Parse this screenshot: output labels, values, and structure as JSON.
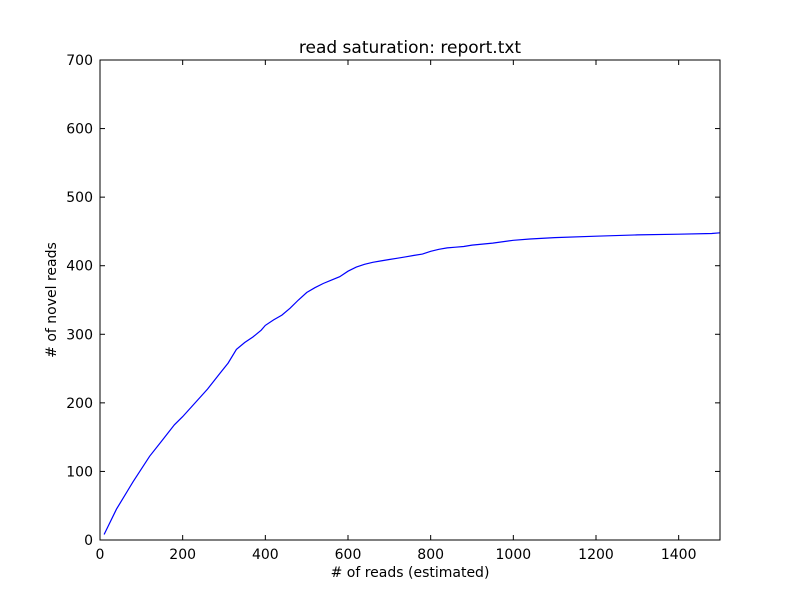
{
  "chart_data": {
    "type": "line",
    "title": "read saturation: report.txt",
    "xlabel": "# of reads (estimated)",
    "ylabel": "# of novel reads",
    "xlim": [
      0,
      1500
    ],
    "ylim": [
      0,
      700
    ],
    "xticks": [
      0,
      200,
      400,
      600,
      800,
      1000,
      1200,
      1400
    ],
    "yticks": [
      0,
      100,
      200,
      300,
      400,
      500,
      600,
      700
    ],
    "grid": false,
    "line_color": "#0000ff",
    "series": [
      {
        "x": [
          10,
          40,
          80,
          120,
          150,
          180,
          200,
          230,
          260,
          290,
          310,
          330,
          350,
          370,
          390,
          400,
          420,
          440,
          460,
          480,
          500,
          520,
          540,
          560,
          580,
          600,
          620,
          640,
          660,
          680,
          700,
          720,
          740,
          760,
          780,
          800,
          820,
          840,
          860,
          880,
          900,
          950,
          1000,
          1040,
          1100,
          1200,
          1300,
          1400,
          1480,
          1500
        ],
        "y": [
          8,
          45,
          85,
          122,
          145,
          168,
          180,
          200,
          220,
          243,
          258,
          278,
          288,
          296,
          306,
          313,
          321,
          328,
          338,
          350,
          361,
          368,
          374,
          379,
          384,
          392,
          398,
          402,
          405,
          407,
          409,
          411,
          413,
          415,
          417,
          421,
          424,
          426,
          427,
          428,
          430,
          433,
          437,
          439,
          441,
          443,
          445,
          446,
          447,
          448
        ]
      }
    ]
  }
}
